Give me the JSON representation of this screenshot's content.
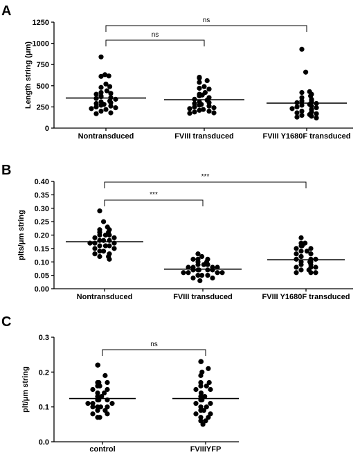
{
  "chart_data": [
    {
      "panel": "A",
      "type": "scatter",
      "ylabel": "Length string (μm)",
      "ylim": [
        0,
        1250
      ],
      "yticks": [
        "0",
        "250",
        "500",
        "750",
        "1000",
        "1250"
      ],
      "categories": [
        "Nontransduced",
        "FVIII transduced",
        "FVIII Y1680F transduced"
      ],
      "series": [
        {
          "values": [
            840,
            630,
            615,
            610,
            520,
            490,
            480,
            440,
            420,
            410,
            400,
            380,
            370,
            360,
            350,
            340,
            320,
            310,
            300,
            290,
            280,
            270,
            260,
            250,
            240,
            230,
            220,
            200,
            180,
            170
          ],
          "mean": 355
        },
        {
          "values": [
            600,
            590,
            560,
            540,
            490,
            470,
            460,
            420,
            400,
            390,
            380,
            360,
            340,
            330,
            310,
            300,
            290,
            280,
            270,
            260,
            250,
            240,
            230,
            220,
            210,
            200,
            190,
            180,
            175
          ],
          "mean": 335
        },
        {
          "values": [
            930,
            660,
            430,
            420,
            400,
            380,
            360,
            340,
            330,
            320,
            310,
            300,
            290,
            280,
            270,
            260,
            250,
            240,
            230,
            220,
            200,
            190,
            180,
            170,
            160,
            150,
            140,
            130,
            120
          ],
          "mean": 295
        }
      ],
      "comparisons": [
        {
          "from": 0,
          "to": 1,
          "label": "ns"
        },
        {
          "from": 0,
          "to": 2,
          "label": "ns"
        }
      ]
    },
    {
      "panel": "B",
      "type": "scatter",
      "ylabel": "plts/μm string",
      "ylim": [
        0,
        0.4
      ],
      "yticks": [
        "0.00",
        "0.05",
        "0.10",
        "0.15",
        "0.20",
        "0.25",
        "0.30",
        "0.35",
        "0.40"
      ],
      "categories": [
        "Nontransduced",
        "FVIII transduced",
        "FVIII Y1680F transduced"
      ],
      "series": [
        {
          "values": [
            0.29,
            0.25,
            0.23,
            0.22,
            0.22,
            0.21,
            0.21,
            0.2,
            0.2,
            0.2,
            0.19,
            0.19,
            0.18,
            0.18,
            0.18,
            0.17,
            0.17,
            0.17,
            0.16,
            0.16,
            0.16,
            0.15,
            0.15,
            0.14,
            0.14,
            0.13,
            0.13,
            0.12,
            0.12,
            0.11
          ],
          "mean": 0.175
        },
        {
          "values": [
            0.13,
            0.12,
            0.11,
            0.11,
            0.11,
            0.1,
            0.1,
            0.09,
            0.09,
            0.09,
            0.08,
            0.08,
            0.08,
            0.08,
            0.07,
            0.07,
            0.07,
            0.07,
            0.07,
            0.06,
            0.06,
            0.06,
            0.06,
            0.05,
            0.05,
            0.05,
            0.04,
            0.04,
            0.03
          ],
          "mean": 0.073
        },
        {
          "values": [
            0.19,
            0.17,
            0.17,
            0.16,
            0.16,
            0.15,
            0.15,
            0.14,
            0.14,
            0.13,
            0.13,
            0.12,
            0.12,
            0.11,
            0.11,
            0.11,
            0.1,
            0.1,
            0.1,
            0.09,
            0.09,
            0.08,
            0.08,
            0.08,
            0.07,
            0.07,
            0.06,
            0.06,
            0.06
          ],
          "mean": 0.108
        }
      ],
      "comparisons": [
        {
          "from": 0,
          "to": 1,
          "label": "***"
        },
        {
          "from": 0,
          "to": 2,
          "label": "***"
        }
      ]
    },
    {
      "panel": "C",
      "type": "scatter",
      "ylabel": "plt/μm string",
      "ylim": [
        0,
        0.3
      ],
      "yticks": [
        "0.0",
        "0.1",
        "0.2",
        "0.3"
      ],
      "categories": [
        "control",
        "FVIIIYFP"
      ],
      "series": [
        {
          "values": [
            0.22,
            0.22,
            0.19,
            0.17,
            0.17,
            0.17,
            0.16,
            0.16,
            0.15,
            0.15,
            0.14,
            0.14,
            0.13,
            0.13,
            0.12,
            0.12,
            0.12,
            0.11,
            0.11,
            0.11,
            0.1,
            0.1,
            0.1,
            0.1,
            0.09,
            0.09,
            0.08,
            0.08,
            0.07,
            0.07
          ],
          "mean": 0.124
        },
        {
          "values": [
            0.23,
            0.23,
            0.21,
            0.2,
            0.19,
            0.17,
            0.17,
            0.16,
            0.16,
            0.15,
            0.15,
            0.14,
            0.13,
            0.13,
            0.12,
            0.12,
            0.11,
            0.11,
            0.1,
            0.1,
            0.09,
            0.09,
            0.08,
            0.08,
            0.07,
            0.07,
            0.06,
            0.06,
            0.05
          ],
          "mean": 0.124
        }
      ],
      "comparisons": [
        {
          "from": 0,
          "to": 1,
          "label": "ns"
        }
      ]
    }
  ]
}
